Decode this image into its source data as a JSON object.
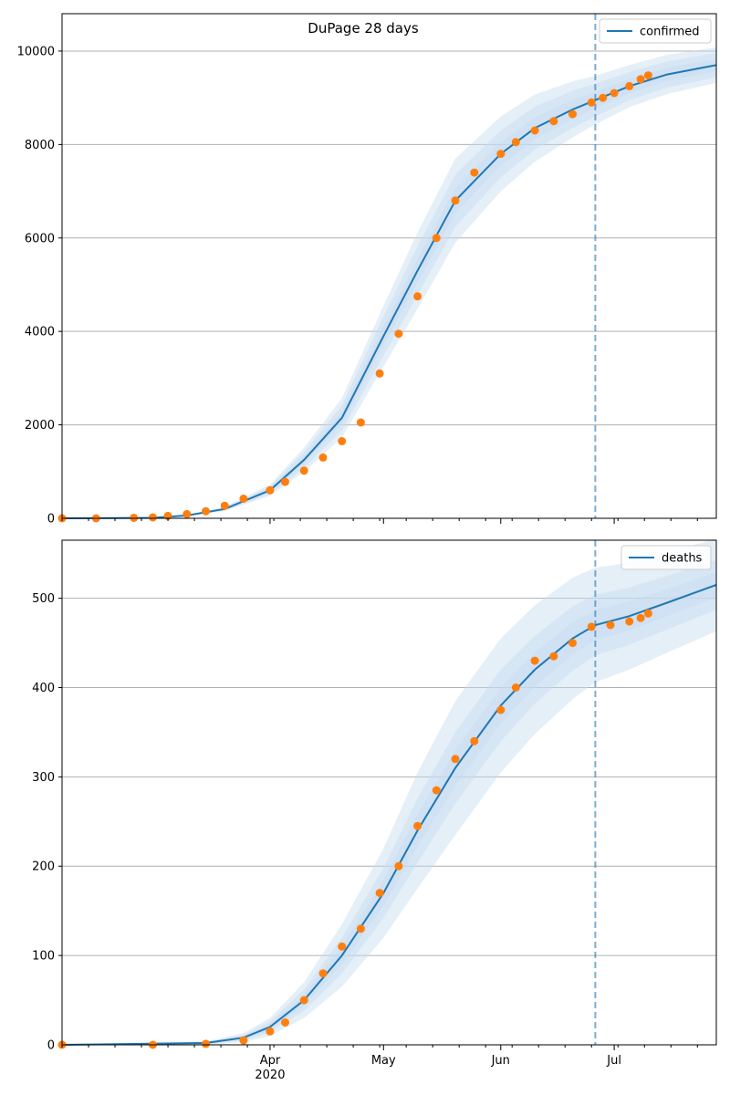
{
  "figure_title": "DuPage 28 days",
  "x_axis": {
    "tick_labels": [
      "Apr",
      "May",
      "Jun",
      "Jul"
    ],
    "year_label": "2020"
  },
  "colors": {
    "model_line": "#1f77b4",
    "observed_points": "#ff7f0e",
    "band": "#c6dbef",
    "grid": "#b0b0b0",
    "forecast_line": "#1f77b4"
  },
  "chart_data": [
    {
      "type": "line",
      "legend": "confirmed",
      "legend_position": "top-right",
      "grid": "horizontal",
      "x_range": [
        "2020-02-06",
        "2020-07-28"
      ],
      "forecast_start": "2020-06-26",
      "ylim": [
        0,
        10800
      ],
      "yticks": [
        0,
        2000,
        4000,
        6000,
        8000,
        10000
      ],
      "model": {
        "x": [
          "2020-02-06",
          "2020-03-01",
          "2020-03-10",
          "2020-03-20",
          "2020-04-01",
          "2020-04-10",
          "2020-04-20",
          "2020-05-01",
          "2020-05-10",
          "2020-05-20",
          "2020-06-01",
          "2020-06-10",
          "2020-06-20",
          "2020-06-26",
          "2020-07-05",
          "2020-07-15",
          "2020-07-28"
        ],
        "y": [
          0,
          10,
          60,
          200,
          600,
          1250,
          2150,
          3900,
          5300,
          6800,
          7800,
          8350,
          8750,
          8950,
          9250,
          9500,
          9700
        ],
        "band_halfwidths": [
          [
            0,
            2,
            5,
            15,
            40,
            80,
            130,
            200,
            250,
            270,
            250,
            230,
            200,
            180,
            150,
            140,
            130
          ],
          [
            0,
            4,
            10,
            30,
            80,
            170,
            270,
            420,
            520,
            560,
            500,
            460,
            400,
            350,
            300,
            280,
            260
          ],
          [
            0,
            6,
            15,
            45,
            120,
            260,
            420,
            650,
            820,
            900,
            800,
            720,
            600,
            520,
            450,
            420,
            380
          ]
        ]
      },
      "observed": {
        "x": [
          "2020-02-06",
          "2020-02-15",
          "2020-02-25",
          "2020-03-01",
          "2020-03-05",
          "2020-03-10",
          "2020-03-15",
          "2020-03-20",
          "2020-03-25",
          "2020-04-01",
          "2020-04-05",
          "2020-04-10",
          "2020-04-15",
          "2020-04-20",
          "2020-04-25",
          "2020-04-30",
          "2020-05-05",
          "2020-05-10",
          "2020-05-15",
          "2020-05-20",
          "2020-05-25",
          "2020-06-01",
          "2020-06-05",
          "2020-06-10",
          "2020-06-15",
          "2020-06-20",
          "2020-06-25",
          "2020-06-28",
          "2020-07-01",
          "2020-07-05",
          "2020-07-08",
          "2020-07-10"
        ],
        "y": [
          0,
          0,
          10,
          20,
          50,
          90,
          150,
          270,
          420,
          600,
          780,
          1020,
          1300,
          1650,
          2050,
          3100,
          3950,
          4750,
          6000,
          6800,
          7400,
          7800,
          8050,
          8300,
          8500,
          8650,
          8900,
          9000,
          9100,
          9250,
          9400,
          9480
        ]
      }
    },
    {
      "type": "line",
      "legend": "deaths",
      "legend_position": "top-right",
      "grid": "horizontal",
      "x_range": [
        "2020-02-06",
        "2020-07-28"
      ],
      "forecast_start": "2020-06-26",
      "ylim": [
        0,
        565
      ],
      "yticks": [
        0,
        100,
        200,
        300,
        400,
        500
      ],
      "model": {
        "x": [
          "2020-02-06",
          "2020-03-15",
          "2020-03-25",
          "2020-04-01",
          "2020-04-10",
          "2020-04-20",
          "2020-05-01",
          "2020-05-10",
          "2020-05-20",
          "2020-06-01",
          "2020-06-10",
          "2020-06-20",
          "2020-06-26",
          "2020-07-05",
          "2020-07-15",
          "2020-07-28"
        ],
        "y": [
          0,
          2,
          8,
          20,
          50,
          100,
          170,
          240,
          310,
          380,
          420,
          455,
          470,
          480,
          495,
          515
        ],
        "band_halfwidths": [
          [
            0,
            1,
            2,
            3,
            6,
            10,
            14,
            18,
            20,
            20,
            19,
            18,
            17,
            16,
            15,
            14
          ],
          [
            0,
            1,
            3,
            6,
            12,
            20,
            28,
            36,
            40,
            40,
            38,
            36,
            34,
            32,
            30,
            28
          ],
          [
            0,
            2,
            5,
            10,
            20,
            35,
            50,
            65,
            75,
            75,
            72,
            68,
            64,
            60,
            56,
            52
          ]
        ]
      },
      "observed": {
        "x": [
          "2020-02-06",
          "2020-03-01",
          "2020-03-15",
          "2020-03-25",
          "2020-04-01",
          "2020-04-05",
          "2020-04-10",
          "2020-04-15",
          "2020-04-20",
          "2020-04-25",
          "2020-04-30",
          "2020-05-05",
          "2020-05-10",
          "2020-05-15",
          "2020-05-20",
          "2020-05-25",
          "2020-06-01",
          "2020-06-05",
          "2020-06-10",
          "2020-06-15",
          "2020-06-20",
          "2020-06-25",
          "2020-06-30",
          "2020-07-05",
          "2020-07-08",
          "2020-07-10"
        ],
        "y": [
          0,
          0,
          1,
          5,
          15,
          25,
          50,
          80,
          110,
          130,
          170,
          200,
          245,
          285,
          320,
          340,
          375,
          400,
          430,
          435,
          450,
          468,
          470,
          474,
          478,
          483
        ]
      }
    }
  ]
}
